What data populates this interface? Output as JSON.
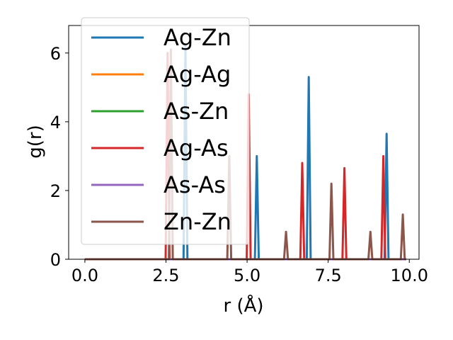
{
  "chart_data": {
    "type": "line",
    "title": "",
    "xlabel": "r (Å)",
    "ylabel": "g(r)",
    "xlim": [
      -0.5,
      10.3
    ],
    "ylim": [
      0,
      6.8
    ],
    "xticks": [
      0.0,
      2.5,
      5.0,
      7.5,
      10.0
    ],
    "xtick_labels": [
      "0.0",
      "2.5",
      "5.0",
      "7.5",
      "10.0"
    ],
    "yticks": [
      0,
      2,
      4,
      6
    ],
    "ytick_labels": [
      "0",
      "2",
      "4",
      "6"
    ],
    "grid": false,
    "legend_position": "upper-left",
    "x_range": [
      0,
      9.9
    ],
    "series": [
      {
        "name": "Ag-Zn",
        "color": "#1f77b4",
        "peaks": [
          [
            3.1,
            6.2
          ],
          [
            5.3,
            3.0
          ],
          [
            6.9,
            5.3
          ],
          [
            9.3,
            3.65
          ]
        ]
      },
      {
        "name": "Ag-Ag",
        "color": "#ff7f0e",
        "peaks": []
      },
      {
        "name": "As-Zn",
        "color": "#2ca02c",
        "peaks": []
      },
      {
        "name": "Ag-As",
        "color": "#d62728",
        "peaks": [
          [
            2.55,
            6.0
          ],
          [
            5.05,
            4.8
          ],
          [
            6.7,
            2.8
          ],
          [
            8.0,
            2.65
          ],
          [
            9.2,
            3.0
          ]
        ]
      },
      {
        "name": "As-As",
        "color": "#9467bd",
        "peaks": []
      },
      {
        "name": "Zn-Zn",
        "color": "#8c564b",
        "peaks": [
          [
            2.65,
            6.1
          ],
          [
            4.45,
            3.0
          ],
          [
            6.2,
            0.8
          ],
          [
            7.6,
            2.2
          ],
          [
            8.8,
            0.8
          ],
          [
            9.8,
            1.3
          ]
        ]
      }
    ]
  }
}
